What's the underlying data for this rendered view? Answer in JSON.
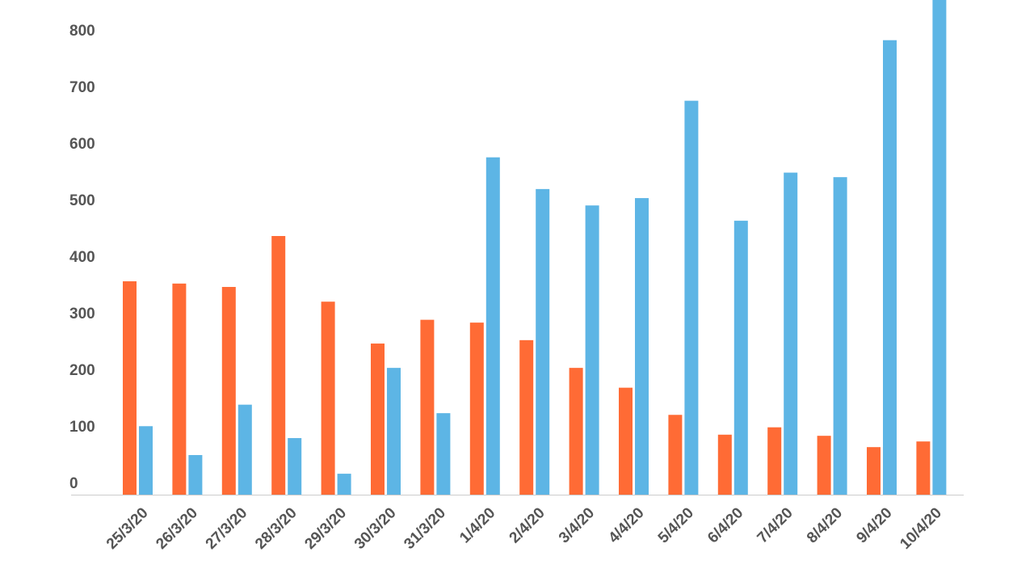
{
  "chart_data": {
    "type": "bar",
    "categories": [
      "25/3/20",
      "26/3/20",
      "27/3/20",
      "28/3/20",
      "29/3/20",
      "30/3/20",
      "31/3/20",
      "1/4/20",
      "2/4/20",
      "3/4/20",
      "4/4/20",
      "5/4/20",
      "6/4/20",
      "7/4/20",
      "8/4/20",
      "9/4/20",
      "10/4/20"
    ],
    "series": [
      {
        "color": "#ff6b35",
        "values": [
          377,
          373,
          367,
          457,
          341,
          267,
          309,
          304,
          273,
          224,
          189,
          141,
          106,
          119,
          104,
          84,
          94
        ]
      },
      {
        "color": "#5db5e5",
        "values": [
          121,
          70,
          159,
          100,
          37,
          224,
          144,
          596,
          540,
          511,
          524,
          696,
          484,
          569,
          561,
          803,
          900
        ]
      }
    ],
    "ylim": [
      0,
      874
    ],
    "yticks": [
      0,
      100,
      200,
      300,
      400,
      500,
      600,
      700,
      800
    ],
    "grid": false
  }
}
